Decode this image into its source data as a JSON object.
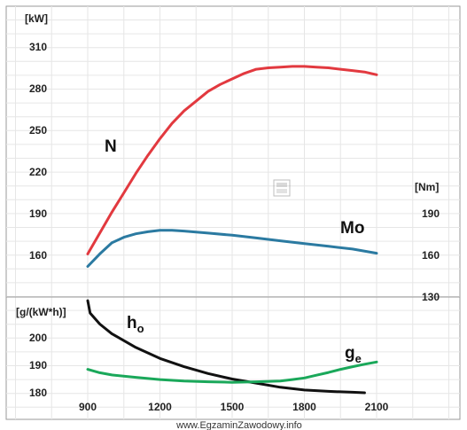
{
  "chart_data": {
    "type": "line",
    "x_ticks": [
      "900",
      "1200",
      "1500",
      "1800",
      "2100"
    ],
    "x_values": [
      900,
      1200,
      1500,
      1800,
      2100
    ],
    "xlim": [
      690,
      2340
    ],
    "grid": true,
    "panels": {
      "top_left": {
        "unit": "[kW]",
        "ticks": [
          "310",
          "280",
          "250",
          "220",
          "190",
          "160"
        ],
        "tick_values": [
          310,
          280,
          250,
          220,
          190,
          160
        ],
        "ylim": [
          136,
          323
        ]
      },
      "top_right": {
        "unit": "[Nm]",
        "ticks": [
          "190",
          "160",
          "130"
        ],
        "tick_values": [
          190,
          160,
          130
        ]
      },
      "bottom_left": {
        "unit": "[g/(kW*h)]",
        "ticks": [
          "200",
          "190",
          "180"
        ],
        "tick_values": [
          200,
          190,
          180
        ],
        "ylim": [
          171,
          216
        ]
      }
    },
    "series": [
      {
        "name": "N",
        "color": "#e2393f",
        "axis": "kW",
        "points": [
          [
            900,
            161
          ],
          [
            950,
            176
          ],
          [
            1000,
            191
          ],
          [
            1050,
            205
          ],
          [
            1100,
            219
          ],
          [
            1150,
            232
          ],
          [
            1200,
            244
          ],
          [
            1250,
            255
          ],
          [
            1300,
            264
          ],
          [
            1350,
            271
          ],
          [
            1400,
            278
          ],
          [
            1450,
            283
          ],
          [
            1500,
            287
          ],
          [
            1550,
            291
          ],
          [
            1600,
            294
          ],
          [
            1650,
            295
          ],
          [
            1700,
            295.5
          ],
          [
            1750,
            296
          ],
          [
            1800,
            296
          ],
          [
            1850,
            295.5
          ],
          [
            1900,
            295
          ],
          [
            1950,
            294
          ],
          [
            2000,
            293
          ],
          [
            2050,
            292
          ],
          [
            2100,
            290
          ]
        ]
      },
      {
        "name": "Mo",
        "color": "#2b7aa1",
        "axis": "Nm",
        "points": [
          [
            900,
            152
          ],
          [
            950,
            161
          ],
          [
            1000,
            169
          ],
          [
            1050,
            173
          ],
          [
            1100,
            175.5
          ],
          [
            1150,
            177
          ],
          [
            1200,
            178
          ],
          [
            1250,
            178
          ],
          [
            1300,
            177.5
          ],
          [
            1400,
            176
          ],
          [
            1500,
            174.5
          ],
          [
            1600,
            172.5
          ],
          [
            1700,
            170.5
          ],
          [
            1800,
            168.5
          ],
          [
            1900,
            166.5
          ],
          [
            2000,
            164.5
          ],
          [
            2100,
            161.5
          ]
        ]
      },
      {
        "name": "h",
        "subscript": "o",
        "color": "#111111",
        "axis": "g/(kW*h)",
        "points": [
          [
            900,
            213.5
          ],
          [
            910,
            209
          ],
          [
            950,
            205
          ],
          [
            1000,
            201.5
          ],
          [
            1100,
            196.5
          ],
          [
            1200,
            192.5
          ],
          [
            1300,
            189.5
          ],
          [
            1400,
            187
          ],
          [
            1500,
            185
          ],
          [
            1600,
            183.5
          ],
          [
            1700,
            182
          ],
          [
            1800,
            181
          ],
          [
            1900,
            180.5
          ],
          [
            2000,
            180.2
          ],
          [
            2050,
            180
          ]
        ]
      },
      {
        "name": "g",
        "subscript": "e",
        "color": "#1aa85a",
        "axis": "g/(kW*h)",
        "points": [
          [
            900,
            188.5
          ],
          [
            950,
            187.3
          ],
          [
            1000,
            186.5
          ],
          [
            1100,
            185.6
          ],
          [
            1200,
            184.8
          ],
          [
            1300,
            184.3
          ],
          [
            1400,
            184
          ],
          [
            1500,
            183.8
          ],
          [
            1600,
            184
          ],
          [
            1700,
            184.3
          ],
          [
            1750,
            184.8
          ],
          [
            1800,
            185.4
          ],
          [
            1850,
            186.4
          ],
          [
            1900,
            187.4
          ],
          [
            1950,
            188.5
          ],
          [
            2000,
            189.5
          ],
          [
            2050,
            190.4
          ],
          [
            2100,
            191.2
          ]
        ]
      }
    ]
  },
  "footer": "www.EgzaminZawodowy.info"
}
